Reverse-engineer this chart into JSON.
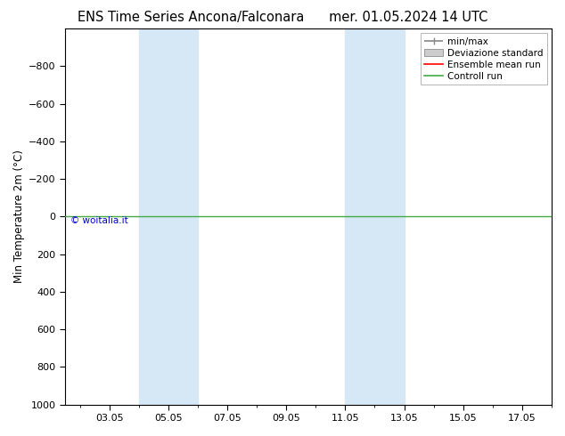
{
  "title_left": "ENS Time Series Ancona/Falconara",
  "title_right": "mer. 01.05.2024 14 UTC",
  "ylabel": "Min Temperature 2m (°C)",
  "ylim_top": -1000,
  "ylim_bottom": 1000,
  "yticks": [
    -800,
    -600,
    -400,
    -200,
    0,
    200,
    400,
    600,
    800,
    1000
  ],
  "xtick_labels": [
    "03.05",
    "05.05",
    "07.05",
    "09.05",
    "11.05",
    "13.05",
    "15.05",
    "17.05"
  ],
  "xtick_positions": [
    3,
    5,
    7,
    9,
    11,
    13,
    15,
    17
  ],
  "xlim": [
    1.5,
    18.0
  ],
  "shaded_bands": [
    {
      "x_start": 4.0,
      "x_end": 6.0,
      "color": "#d6e8f5"
    },
    {
      "x_start": 11.0,
      "x_end": 13.0,
      "color": "#d6e8f5"
    }
  ],
  "horizontal_line_y": 0,
  "horizontal_line_color": "#44aa44",
  "ensemble_mean_color": "#ff0000",
  "controll_run_color": "#44aa44",
  "legend_labels": [
    "min/max",
    "Deviazione standard",
    "Ensemble mean run",
    "Controll run"
  ],
  "watermark": "© woitalia.it",
  "watermark_color": "#0000cc",
  "background_color": "#ffffff",
  "plot_bg_color": "#ffffff",
  "title_fontsize": 10.5,
  "axis_label_fontsize": 8.5,
  "tick_fontsize": 8,
  "legend_fontsize": 7.5
}
